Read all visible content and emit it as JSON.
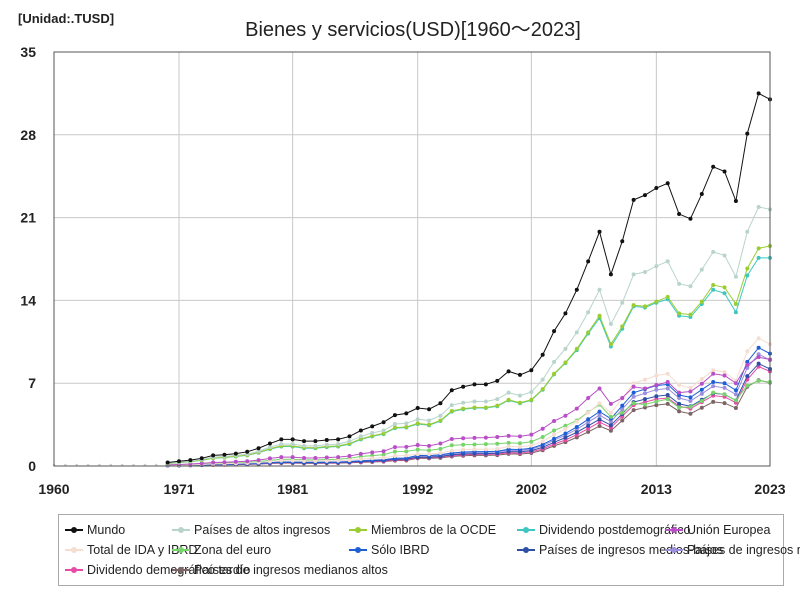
{
  "unit_label": "[Unidad:.TUSD]",
  "chart_data": {
    "type": "line",
    "title": "Bienes y servicios(USD)[1960～2023]",
    "xlabel": "",
    "ylabel": "",
    "xlim": [
      1960,
      2023
    ],
    "ylim": [
      0,
      35
    ],
    "x_ticks": [
      1960,
      1971,
      1981,
      1992,
      2002,
      2013,
      2023
    ],
    "y_ticks": [
      0,
      7,
      14,
      21,
      28,
      35
    ],
    "grid": true,
    "legend_position": "bottom",
    "x": [
      1970,
      1971,
      1972,
      1973,
      1974,
      1975,
      1976,
      1977,
      1978,
      1979,
      1980,
      1981,
      1982,
      1983,
      1984,
      1985,
      1986,
      1987,
      1988,
      1989,
      1990,
      1991,
      1992,
      1993,
      1994,
      1995,
      1996,
      1997,
      1998,
      1999,
      2000,
      2001,
      2002,
      2003,
      2004,
      2005,
      2006,
      2007,
      2008,
      2009,
      2010,
      2011,
      2012,
      2013,
      2014,
      2015,
      2016,
      2017,
      2018,
      2019,
      2020,
      2021,
      2022,
      2023
    ],
    "series": [
      {
        "name": "Mundo",
        "color": "#111111",
        "values": [
          0.3,
          0.4,
          0.5,
          0.65,
          0.9,
          0.95,
          1.05,
          1.2,
          1.5,
          1.9,
          2.25,
          2.25,
          2.1,
          2.1,
          2.2,
          2.25,
          2.5,
          3.0,
          3.35,
          3.7,
          4.3,
          4.45,
          4.9,
          4.8,
          5.3,
          6.4,
          6.7,
          6.9,
          6.9,
          7.2,
          8.0,
          7.7,
          8.1,
          9.4,
          11.4,
          12.9,
          14.9,
          17.3,
          19.8,
          16.2,
          19.0,
          22.5,
          22.9,
          23.5,
          23.9,
          21.3,
          20.9,
          23.0,
          25.3,
          24.9,
          22.4,
          28.1,
          31.5,
          31.0
        ]
      },
      {
        "name": "Países de altos ingresos",
        "color": "#b8d4cc",
        "values": [
          0.25,
          0.33,
          0.42,
          0.55,
          0.75,
          0.8,
          0.9,
          1.0,
          1.25,
          1.6,
          1.85,
          1.85,
          1.7,
          1.7,
          1.8,
          1.85,
          2.1,
          2.5,
          2.8,
          3.0,
          3.55,
          3.6,
          3.95,
          3.85,
          4.25,
          5.15,
          5.35,
          5.45,
          5.45,
          5.65,
          6.2,
          5.95,
          6.25,
          7.3,
          8.8,
          9.9,
          11.3,
          13.0,
          14.9,
          12.0,
          13.8,
          16.2,
          16.4,
          16.9,
          17.3,
          15.4,
          15.2,
          16.6,
          18.1,
          17.8,
          16.0,
          19.8,
          21.9,
          21.7
        ]
      },
      {
        "name": "Miembros de la OCDE",
        "color": "#9acd32",
        "values": [
          0.22,
          0.3,
          0.38,
          0.5,
          0.68,
          0.73,
          0.82,
          0.92,
          1.15,
          1.47,
          1.7,
          1.7,
          1.55,
          1.55,
          1.65,
          1.7,
          1.9,
          2.3,
          2.55,
          2.75,
          3.25,
          3.3,
          3.6,
          3.5,
          3.85,
          4.65,
          4.85,
          4.95,
          4.95,
          5.1,
          5.6,
          5.35,
          5.6,
          6.5,
          7.8,
          8.75,
          9.9,
          11.3,
          12.7,
          10.3,
          11.8,
          13.6,
          13.5,
          13.9,
          14.3,
          12.9,
          12.8,
          13.9,
          15.3,
          15.1,
          13.7,
          16.7,
          18.4,
          18.6
        ]
      },
      {
        "name": "Dividendo postdemográfico",
        "color": "#3ec7c0",
        "values": [
          0.21,
          0.29,
          0.37,
          0.48,
          0.66,
          0.71,
          0.8,
          0.9,
          1.12,
          1.43,
          1.65,
          1.65,
          1.5,
          1.5,
          1.6,
          1.65,
          1.85,
          2.25,
          2.5,
          2.7,
          3.2,
          3.25,
          3.55,
          3.45,
          3.8,
          4.6,
          4.8,
          4.9,
          4.9,
          5.05,
          5.55,
          5.3,
          5.55,
          6.45,
          7.75,
          8.7,
          9.8,
          11.2,
          12.5,
          10.1,
          11.6,
          13.5,
          13.4,
          13.8,
          14.1,
          12.7,
          12.6,
          13.7,
          14.9,
          14.6,
          13.0,
          16.1,
          17.6,
          17.6
        ]
      },
      {
        "name": "Unión Europea",
        "color": "#b84fc6",
        "values": [
          0.1,
          0.13,
          0.17,
          0.22,
          0.3,
          0.32,
          0.36,
          0.4,
          0.5,
          0.64,
          0.75,
          0.75,
          0.68,
          0.68,
          0.72,
          0.75,
          0.85,
          1.03,
          1.15,
          1.25,
          1.6,
          1.62,
          1.78,
          1.7,
          1.9,
          2.28,
          2.35,
          2.38,
          2.4,
          2.45,
          2.55,
          2.5,
          2.65,
          3.15,
          3.8,
          4.25,
          4.85,
          5.75,
          6.55,
          5.25,
          5.75,
          6.7,
          6.55,
          6.85,
          7.1,
          6.2,
          6.3,
          6.95,
          7.8,
          7.65,
          7.0,
          8.55,
          9.2,
          9.0
        ]
      },
      {
        "name": "Total de IDA y IBRD",
        "color": "#f5ddd0",
        "values": [
          0.06,
          0.08,
          0.1,
          0.13,
          0.18,
          0.19,
          0.22,
          0.25,
          0.3,
          0.38,
          0.45,
          0.45,
          0.42,
          0.42,
          0.43,
          0.45,
          0.5,
          0.58,
          0.65,
          0.7,
          0.85,
          0.9,
          1.0,
          1.0,
          1.1,
          1.3,
          1.38,
          1.42,
          1.42,
          1.45,
          1.65,
          1.62,
          1.72,
          2.08,
          2.65,
          3.15,
          3.75,
          4.5,
          5.3,
          4.5,
          5.7,
          7.0,
          7.3,
          7.65,
          7.8,
          6.85,
          6.6,
          7.35,
          8.1,
          7.95,
          7.2,
          9.7,
          10.8,
          10.3
        ]
      },
      {
        "name": "Zona del euro",
        "color": "#77d46a",
        "values": [
          0.08,
          0.1,
          0.13,
          0.17,
          0.23,
          0.25,
          0.28,
          0.31,
          0.38,
          0.48,
          0.57,
          0.57,
          0.52,
          0.52,
          0.55,
          0.57,
          0.65,
          0.8,
          0.88,
          0.95,
          1.22,
          1.24,
          1.38,
          1.32,
          1.45,
          1.75,
          1.8,
          1.82,
          1.85,
          1.88,
          1.95,
          1.92,
          2.05,
          2.45,
          3.0,
          3.4,
          3.85,
          4.55,
          5.2,
          4.15,
          4.5,
          5.3,
          5.2,
          5.45,
          5.65,
          4.95,
          5.0,
          5.5,
          6.2,
          6.05,
          5.55,
          6.8,
          7.2,
          7.1
        ]
      },
      {
        "name": "Sólo IBRD",
        "color": "#1f5fd6",
        "values": [
          0.05,
          0.06,
          0.08,
          0.1,
          0.14,
          0.15,
          0.17,
          0.19,
          0.23,
          0.29,
          0.34,
          0.34,
          0.32,
          0.32,
          0.33,
          0.34,
          0.38,
          0.44,
          0.49,
          0.53,
          0.65,
          0.68,
          0.9,
          0.88,
          0.95,
          1.1,
          1.18,
          1.22,
          1.22,
          1.25,
          1.42,
          1.4,
          1.5,
          1.82,
          2.3,
          2.75,
          3.3,
          3.95,
          4.6,
          4.0,
          5.1,
          6.2,
          6.5,
          6.8,
          6.9,
          6.0,
          5.8,
          6.45,
          7.1,
          7.0,
          6.4,
          8.8,
          10.0,
          9.5
        ]
      },
      {
        "name": "Países de ingresos medios-bajos",
        "color": "#2e4fa6",
        "values": [
          0.04,
          0.05,
          0.07,
          0.09,
          0.12,
          0.13,
          0.15,
          0.17,
          0.2,
          0.26,
          0.3,
          0.3,
          0.28,
          0.28,
          0.29,
          0.3,
          0.33,
          0.38,
          0.42,
          0.46,
          0.56,
          0.58,
          0.75,
          0.74,
          0.8,
          0.95,
          1.02,
          1.05,
          1.05,
          1.08,
          1.22,
          1.2,
          1.3,
          1.58,
          2.0,
          2.4,
          2.85,
          3.4,
          3.95,
          3.45,
          4.4,
          5.4,
          5.65,
          5.9,
          6.0,
          5.25,
          5.05,
          5.6,
          6.15,
          6.05,
          5.55,
          7.6,
          8.65,
          8.2
        ]
      },
      {
        "name": "Países de ingresos medios",
        "color": "#9b8fe0",
        "values": [
          0.045,
          0.055,
          0.075,
          0.095,
          0.13,
          0.14,
          0.16,
          0.18,
          0.22,
          0.28,
          0.32,
          0.32,
          0.3,
          0.3,
          0.31,
          0.32,
          0.35,
          0.41,
          0.46,
          0.5,
          0.6,
          0.63,
          0.83,
          0.82,
          0.88,
          1.05,
          1.12,
          1.15,
          1.15,
          1.18,
          1.33,
          1.3,
          1.42,
          1.72,
          2.18,
          2.6,
          3.1,
          3.7,
          4.3,
          3.75,
          4.8,
          5.85,
          6.15,
          6.45,
          6.55,
          5.75,
          5.5,
          6.1,
          6.75,
          6.6,
          6.05,
          8.3,
          9.45,
          8.95
        ]
      },
      {
        "name": "Dividendo demográfico tardío",
        "color": "#e84aa6",
        "values": [
          0.04,
          0.05,
          0.06,
          0.08,
          0.11,
          0.12,
          0.13,
          0.15,
          0.18,
          0.23,
          0.27,
          0.27,
          0.25,
          0.25,
          0.26,
          0.27,
          0.3,
          0.34,
          0.38,
          0.41,
          0.5,
          0.52,
          0.72,
          0.7,
          0.76,
          0.88,
          0.95,
          0.98,
          0.98,
          1.0,
          1.12,
          1.1,
          1.2,
          1.45,
          1.85,
          2.2,
          2.65,
          3.15,
          3.7,
          3.25,
          4.2,
          5.15,
          5.4,
          5.65,
          5.75,
          5.05,
          4.85,
          5.4,
          5.95,
          5.85,
          5.35,
          7.3,
          8.4,
          8.0
        ]
      },
      {
        "name": "Países de ingresos medianos altos",
        "color": "#7d6464",
        "values": [
          0.035,
          0.045,
          0.055,
          0.07,
          0.1,
          0.11,
          0.12,
          0.14,
          0.16,
          0.21,
          0.24,
          0.24,
          0.22,
          0.22,
          0.23,
          0.24,
          0.27,
          0.31,
          0.34,
          0.37,
          0.45,
          0.47,
          0.65,
          0.64,
          0.69,
          0.8,
          0.87,
          0.9,
          0.9,
          0.92,
          1.03,
          1.0,
          1.1,
          1.33,
          1.7,
          2.02,
          2.42,
          2.88,
          3.38,
          2.98,
          3.85,
          4.72,
          4.95,
          5.15,
          5.25,
          4.62,
          4.42,
          4.92,
          5.42,
          5.32,
          4.9,
          6.7,
          7.25,
          7.05
        ]
      }
    ]
  }
}
